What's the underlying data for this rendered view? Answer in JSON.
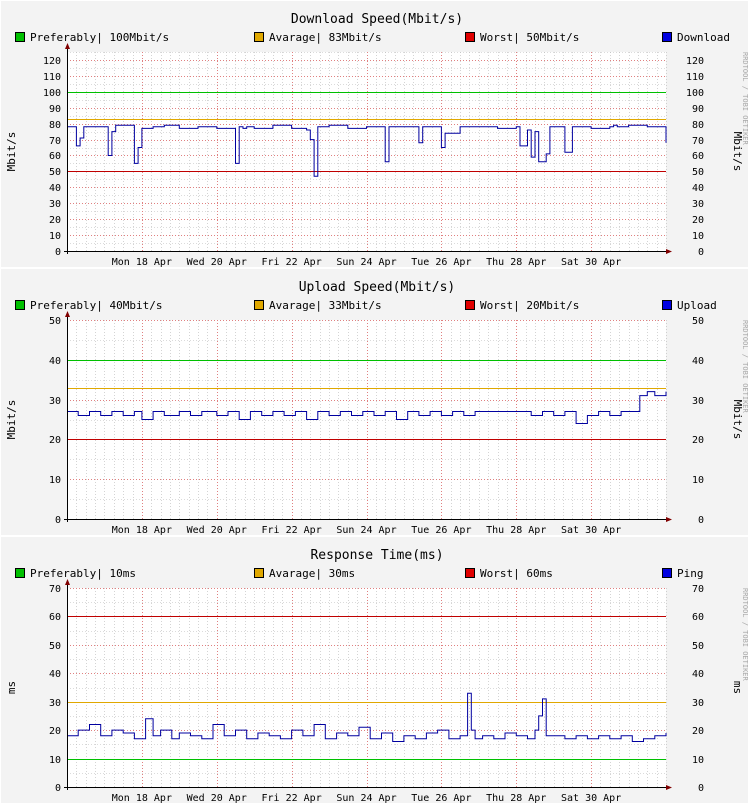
{
  "colors": {
    "background": "#f3f3f3",
    "canvas": "#ffffff",
    "major_grid": "#e08080",
    "minor_grid": "#b8b8b8",
    "preferably": "#00c000",
    "avarage": "#e0a800",
    "worst": "#c00000",
    "series": "#0000a0",
    "axis": "#000000",
    "arrow": "#800000"
  },
  "watermark": "RRDTOOL / TOBI OETIKER",
  "chart_data": [
    {
      "type": "line",
      "title": "Download Speed(Mbit/s)",
      "ylabel": "Mbit/s",
      "ylim": [
        0,
        125
      ],
      "yticks": [
        "0",
        "10",
        "20",
        "30",
        "40",
        "50",
        "60",
        "70",
        "80",
        "90",
        "100",
        "110",
        "120"
      ],
      "ytick_values": [
        0,
        10,
        20,
        30,
        40,
        50,
        60,
        70,
        80,
        90,
        100,
        110,
        120
      ],
      "xlim": [
        0,
        16
      ],
      "xticks": [
        "Mon 18 Apr",
        "Wed 20 Apr",
        "Fri 22 Apr",
        "Sun 24 Apr",
        "Tue 26 Apr",
        "Thu 28 Apr",
        "Sat 30 Apr"
      ],
      "xtick_values": [
        2,
        4,
        6,
        8,
        10,
        12,
        14
      ],
      "grid": true,
      "legend": [
        {
          "label": "Preferably| 100Mbit/s",
          "color": "#00c000"
        },
        {
          "label": "Avarage| 83Mbit/s",
          "color": "#e0a800"
        },
        {
          "label": "Worst| 50Mbit/s",
          "color": "#e00000"
        },
        {
          "label": "Download",
          "color": "#0000e0"
        }
      ],
      "thresholds": [
        {
          "name": "Preferably",
          "value": 100,
          "color": "#00c000"
        },
        {
          "name": "Avarage",
          "value": 83,
          "color": "#e0a800"
        },
        {
          "name": "Worst",
          "value": 50,
          "color": "#c00000"
        }
      ],
      "series": [
        {
          "name": "Download",
          "x": [
            0,
            0.25,
            0.35,
            0.45,
            0.55,
            1.1,
            1.2,
            1.3,
            1.8,
            1.9,
            2.0,
            2.15,
            2.3,
            2.6,
            3.0,
            3.5,
            4.0,
            4.5,
            4.6,
            4.7,
            4.8,
            5.0,
            5.5,
            6.0,
            6.2,
            6.4,
            6.5,
            6.6,
            6.7,
            7.0,
            7.5,
            8.0,
            8.4,
            8.5,
            8.6,
            9.0,
            9.3,
            9.4,
            9.5,
            9.9,
            10.0,
            10.1,
            10.5,
            11.0,
            11.5,
            12.0,
            12.1,
            12.3,
            12.4,
            12.5,
            12.6,
            12.8,
            12.9,
            13.0,
            13.3,
            13.5,
            14.0,
            14.5,
            14.6,
            14.7,
            14.9,
            15.0,
            15.5,
            16.0
          ],
          "values": [
            78,
            66,
            71,
            78,
            78,
            60,
            75,
            79,
            55,
            65,
            77,
            77,
            78,
            79,
            77,
            78,
            77,
            55,
            78,
            77,
            78,
            77,
            79,
            77,
            77,
            76,
            70,
            47,
            78,
            79,
            77,
            78,
            78,
            56,
            78,
            78,
            78,
            68,
            78,
            78,
            65,
            74,
            78,
            78,
            77,
            78,
            66,
            76,
            59,
            75,
            56,
            61,
            78,
            78,
            62,
            78,
            77,
            78,
            79,
            78,
            78,
            79,
            78,
            68
          ]
        }
      ]
    },
    {
      "type": "line",
      "title": "Upload Speed(Mbit/s)",
      "ylabel": "Mbit/s",
      "ylim": [
        0,
        50
      ],
      "yticks": [
        "0",
        "10",
        "20",
        "30",
        "40",
        "50"
      ],
      "ytick_values": [
        0,
        10,
        20,
        30,
        40,
        50
      ],
      "xlim": [
        0,
        16
      ],
      "xticks": [
        "Mon 18 Apr",
        "Wed 20 Apr",
        "Fri 22 Apr",
        "Sun 24 Apr",
        "Tue 26 Apr",
        "Thu 28 Apr",
        "Sat 30 Apr"
      ],
      "xtick_values": [
        2,
        4,
        6,
        8,
        10,
        12,
        14
      ],
      "grid": true,
      "legend": [
        {
          "label": "Preferably| 40Mbit/s",
          "color": "#00c000"
        },
        {
          "label": "Avarage| 33Mbit/s",
          "color": "#e0a800"
        },
        {
          "label": "Worst| 20Mbit/s",
          "color": "#e00000"
        },
        {
          "label": "Upload",
          "color": "#0000e0"
        }
      ],
      "thresholds": [
        {
          "name": "Preferably",
          "value": 40,
          "color": "#00c000"
        },
        {
          "name": "Avarage",
          "value": 33,
          "color": "#e0a800"
        },
        {
          "name": "Worst",
          "value": 20,
          "color": "#c00000"
        }
      ],
      "series": [
        {
          "name": "Upload",
          "x": [
            0,
            0.3,
            0.6,
            0.9,
            1.2,
            1.5,
            1.8,
            2.0,
            2.3,
            2.6,
            3.0,
            3.3,
            3.6,
            4.0,
            4.3,
            4.6,
            4.9,
            5.2,
            5.5,
            5.8,
            6.1,
            6.4,
            6.7,
            7.0,
            7.3,
            7.6,
            7.9,
            8.2,
            8.5,
            8.8,
            9.1,
            9.4,
            9.7,
            10.0,
            10.3,
            10.6,
            10.9,
            11.2,
            11.5,
            11.8,
            12.1,
            12.4,
            12.7,
            13.0,
            13.3,
            13.6,
            13.9,
            14.2,
            14.5,
            14.8,
            15.1,
            15.3,
            15.5,
            15.7,
            16.0
          ],
          "values": [
            27,
            26,
            27,
            26,
            27,
            26,
            27,
            25,
            27,
            26,
            27,
            26,
            27,
            26,
            27,
            25,
            27,
            26,
            27,
            26,
            27,
            25,
            27,
            26,
            27,
            26,
            27,
            26,
            27,
            25,
            27,
            26,
            27,
            26,
            27,
            26,
            27,
            27,
            27,
            27,
            27,
            26,
            27,
            26,
            27,
            24,
            26,
            27,
            26,
            27,
            27,
            31,
            32,
            31,
            32
          ]
        }
      ]
    },
    {
      "type": "line",
      "title": "Response Time(ms)",
      "ylabel": "ms",
      "ylim": [
        0,
        70
      ],
      "yticks": [
        "0",
        "10",
        "20",
        "30",
        "40",
        "50",
        "60",
        "70"
      ],
      "ytick_values": [
        0,
        10,
        20,
        30,
        40,
        50,
        60,
        70
      ],
      "xlim": [
        0,
        16
      ],
      "xticks": [
        "Mon 18 Apr",
        "Wed 20 Apr",
        "Fri 22 Apr",
        "Sun 24 Apr",
        "Tue 26 Apr",
        "Thu 28 Apr",
        "Sat 30 Apr"
      ],
      "xtick_values": [
        2,
        4,
        6,
        8,
        10,
        12,
        14
      ],
      "grid": true,
      "legend": [
        {
          "label": "Preferably| 10ms",
          "color": "#00c000"
        },
        {
          "label": "Avarage| 30ms",
          "color": "#e0a800"
        },
        {
          "label": "Worst| 60ms",
          "color": "#e00000"
        },
        {
          "label": "Ping",
          "color": "#0000e0"
        }
      ],
      "thresholds": [
        {
          "name": "Preferably",
          "value": 10,
          "color": "#00c000"
        },
        {
          "name": "Avarage",
          "value": 30,
          "color": "#e0a800"
        },
        {
          "name": "Worst",
          "value": 60,
          "color": "#c00000"
        }
      ],
      "series": [
        {
          "name": "Ping",
          "x": [
            0,
            0.3,
            0.6,
            0.9,
            1.2,
            1.5,
            1.8,
            2.1,
            2.3,
            2.5,
            2.8,
            3.0,
            3.3,
            3.6,
            3.9,
            4.2,
            4.5,
            4.8,
            5.1,
            5.4,
            5.7,
            6.0,
            6.3,
            6.6,
            6.9,
            7.2,
            7.5,
            7.8,
            8.1,
            8.4,
            8.7,
            9.0,
            9.3,
            9.6,
            9.9,
            10.2,
            10.5,
            10.7,
            10.8,
            10.9,
            11.1,
            11.4,
            11.7,
            12.0,
            12.3,
            12.5,
            12.6,
            12.7,
            12.8,
            13.0,
            13.3,
            13.6,
            13.9,
            14.2,
            14.5,
            14.8,
            15.1,
            15.4,
            15.7,
            16.0
          ],
          "values": [
            18,
            20,
            22,
            18,
            20,
            19,
            17,
            24,
            18,
            20,
            17,
            19,
            18,
            17,
            22,
            18,
            20,
            17,
            19,
            18,
            17,
            20,
            18,
            22,
            17,
            19,
            18,
            21,
            17,
            19,
            16,
            18,
            17,
            19,
            20,
            17,
            18,
            33,
            20,
            17,
            18,
            17,
            19,
            18,
            17,
            20,
            25,
            31,
            18,
            18,
            17,
            18,
            17,
            18,
            17,
            18,
            16,
            17,
            18,
            19
          ]
        }
      ]
    }
  ]
}
